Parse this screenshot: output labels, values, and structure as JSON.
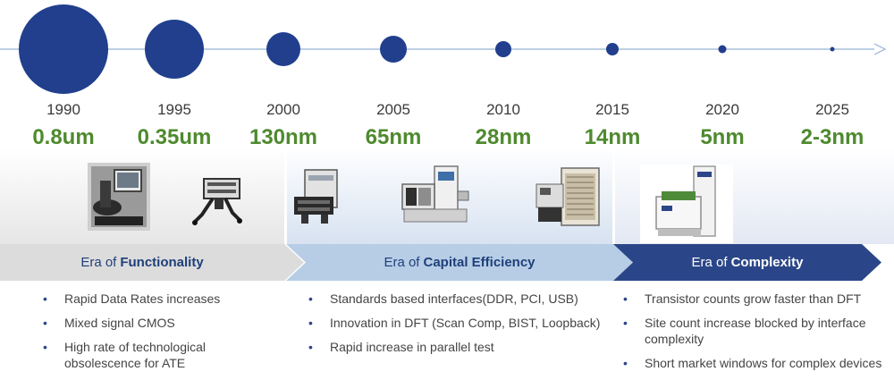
{
  "timeline": {
    "nodes": [
      {
        "year": "1990",
        "node": "0.8um",
        "scale": 1.0
      },
      {
        "year": "1995",
        "node": "0.35um",
        "scale": 0.66
      },
      {
        "year": "2000",
        "node": "130nm",
        "scale": 0.38
      },
      {
        "year": "2005",
        "node": "65nm",
        "scale": 0.3
      },
      {
        "year": "2010",
        "node": "28nm",
        "scale": 0.18
      },
      {
        "year": "2015",
        "node": "14nm",
        "scale": 0.14
      },
      {
        "year": "2020",
        "node": "5nm",
        "scale": 0.09
      },
      {
        "year": "2025",
        "node": "2-3nm",
        "scale": 0.05
      }
    ],
    "dot_color": "#213f8d",
    "axis_color": "#a9bfdc",
    "node_label_color": "#4e8a2e"
  },
  "eras": [
    {
      "prefix": "Era of",
      "name": "Functionality",
      "bullets": [
        "Rapid Data Rates increases",
        "Mixed signal CMOS",
        "High rate of technological obsolescence for ATE"
      ]
    },
    {
      "prefix": "Era of",
      "name": "Capital Efficiency",
      "bullets": [
        "Standards based interfaces(DDR, PCI, USB)",
        "Innovation in DFT (Scan Comp, BIST, Loopback)",
        "Rapid increase in parallel test"
      ]
    },
    {
      "prefix": "Era of",
      "name": "Complexity",
      "bullets": [
        "Transistor counts grow faster than DFT",
        "Site count increase blocked by interface complexity",
        "Short market windows for complex devices"
      ]
    }
  ],
  "icons": [
    "test-station-icon",
    "test-head-on-manipulator-icon",
    "tester-mainframe-icon",
    "handler-with-test-head-icon",
    "cabinet-tester-icon",
    "modern-ate-system-icon"
  ]
}
